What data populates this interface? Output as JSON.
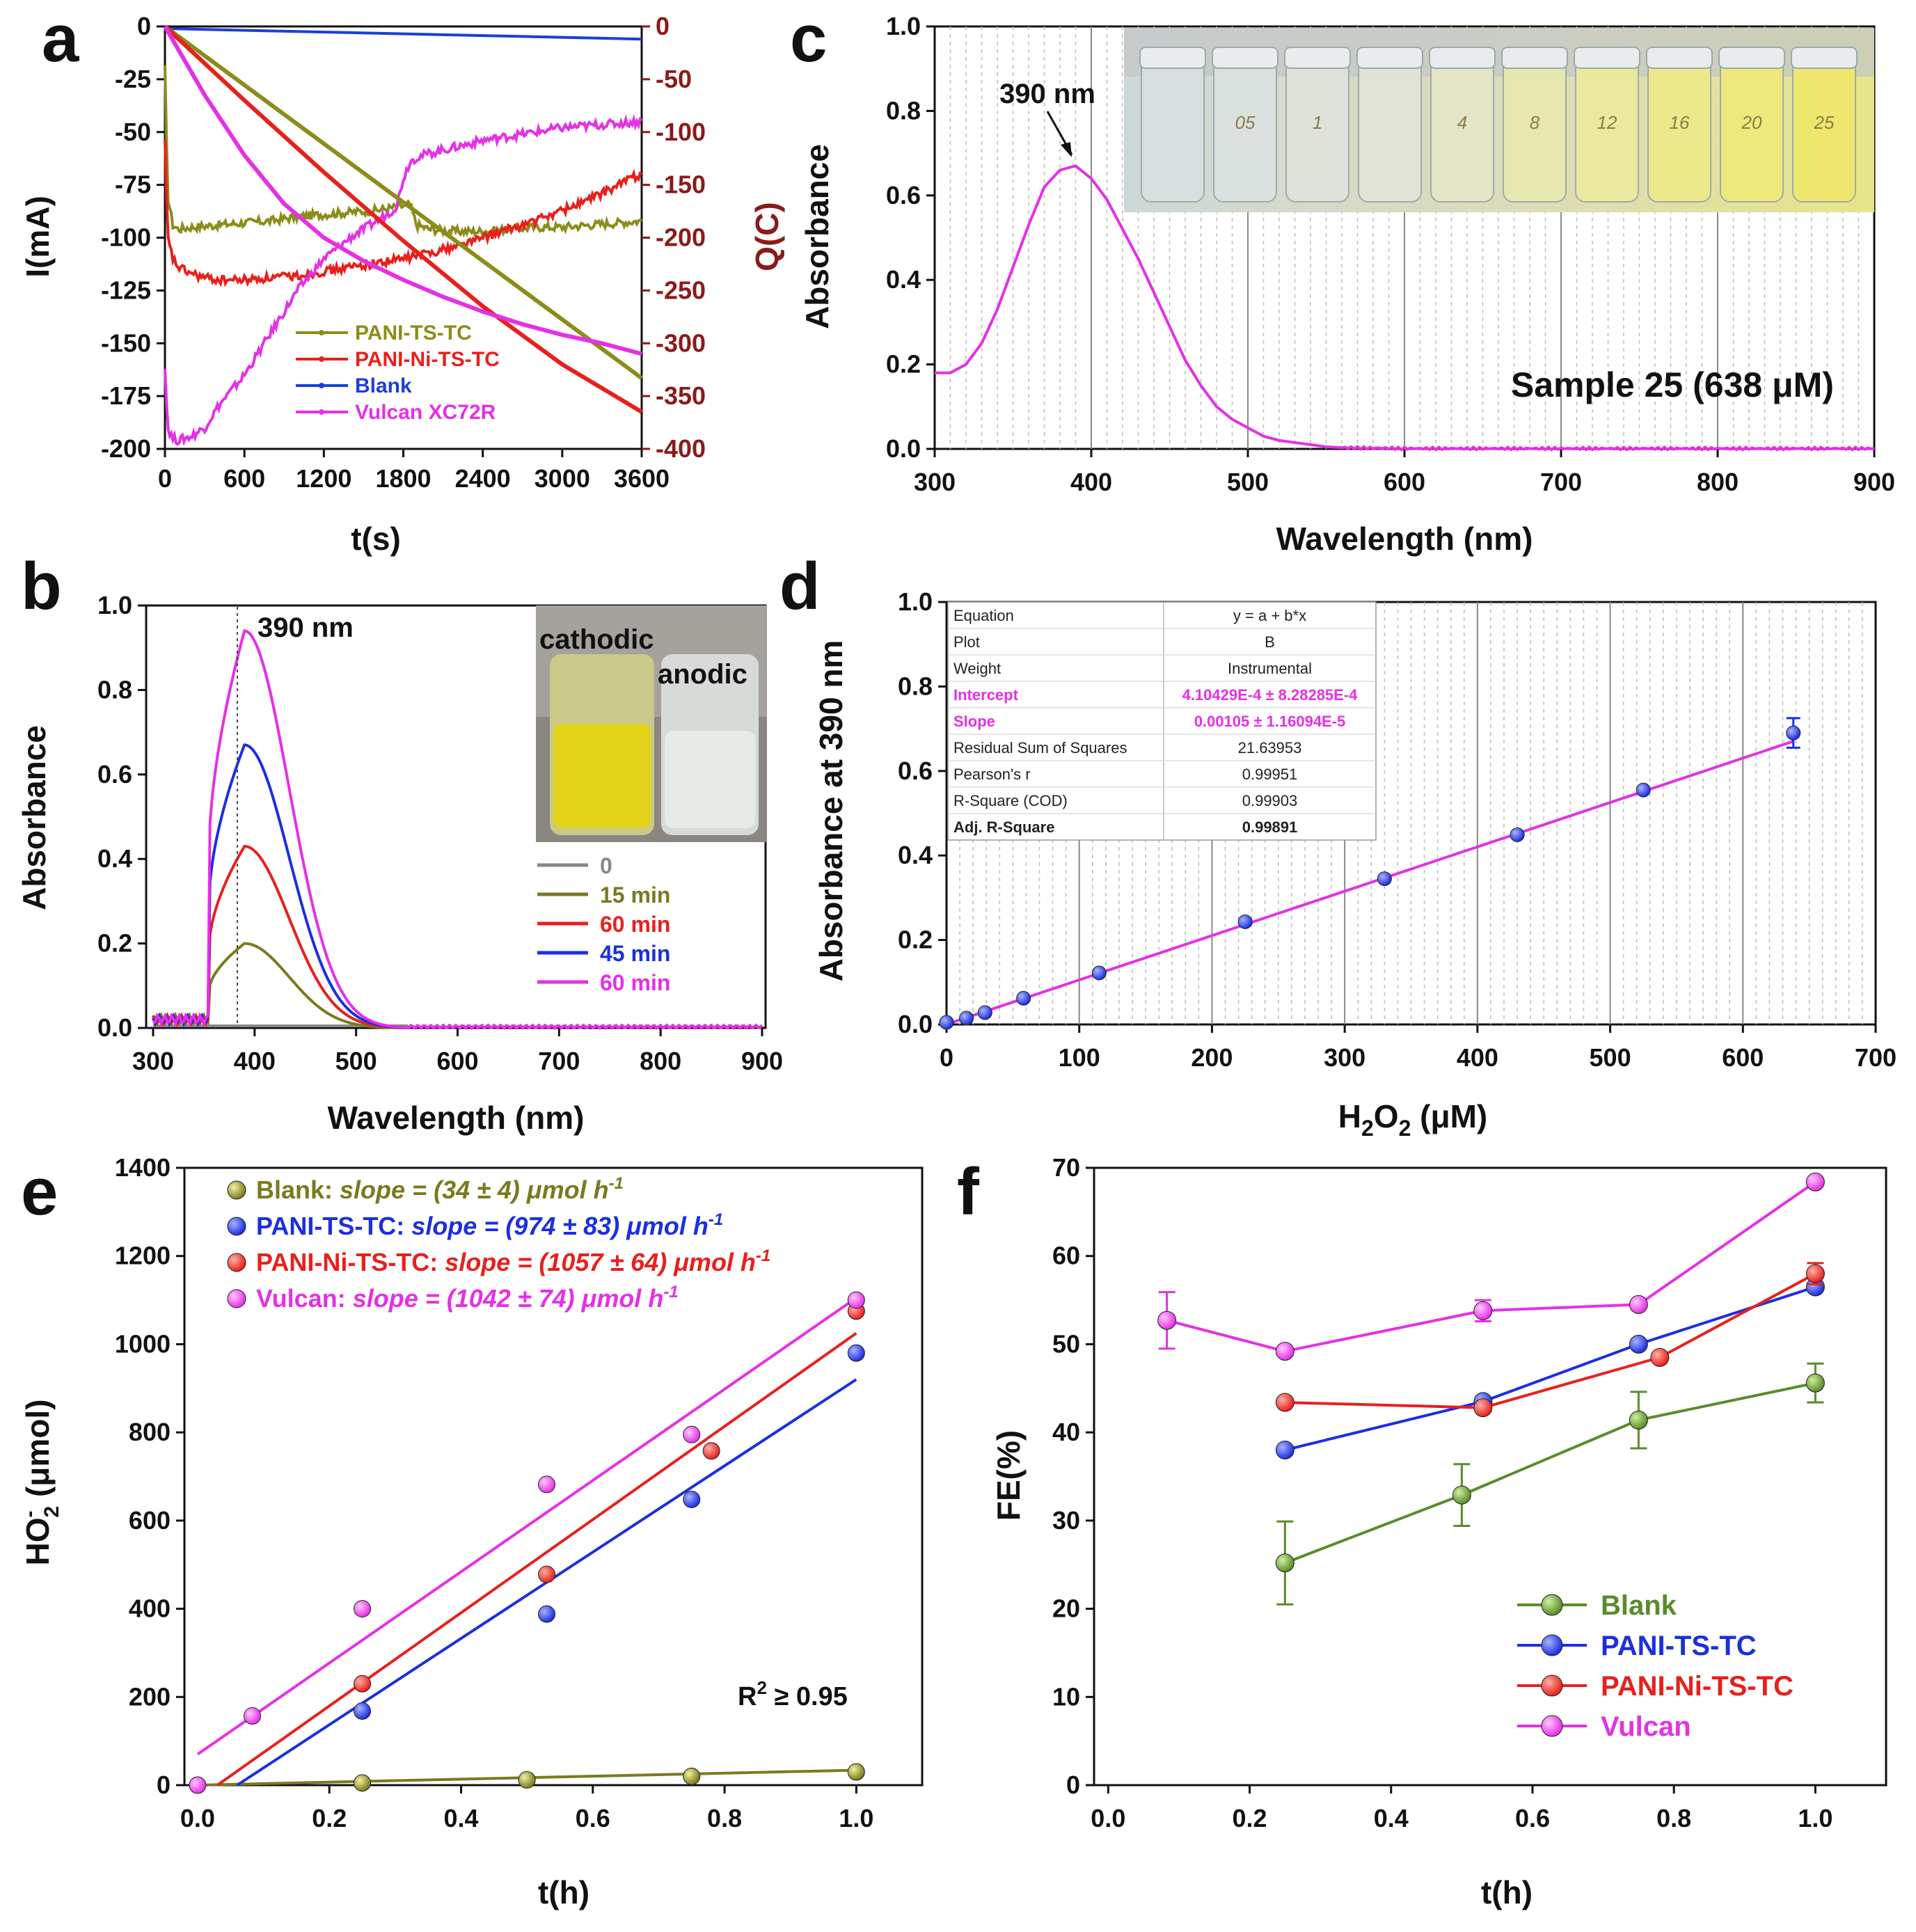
{
  "panels": {
    "a": {
      "label": "a",
      "xlabel": "t(s)",
      "ylabel_left": "I(mA)",
      "ylabel_right": "Q(C)",
      "xticks": [
        "0",
        "600",
        "1200",
        "1800",
        "2400",
        "3000",
        "3600"
      ],
      "yticks_left": [
        "0",
        "-25",
        "-50",
        "-75",
        "-100",
        "-125",
        "-150",
        "-175",
        "-200"
      ],
      "yticks_right": [
        "0",
        "-50",
        "-100",
        "-150",
        "-200",
        "-250",
        "-300",
        "-350",
        "-400"
      ],
      "legend": [
        "PANI-TS-TC",
        "PANI-Ni-TS-TC",
        "Blank",
        "Vulcan XC72R"
      ]
    },
    "b": {
      "label": "b",
      "xlabel": "Wavelength (nm)",
      "ylabel": "Absorbance",
      "xticks": [
        "300",
        "400",
        "500",
        "600",
        "700",
        "800",
        "900"
      ],
      "yticks": [
        "0.0",
        "0.2",
        "0.4",
        "0.6",
        "0.8",
        "1.0"
      ],
      "annotation": "390 nm",
      "legend": [
        "0",
        "15 min",
        "60 min",
        "45 min",
        "60 min"
      ],
      "photo_labels": [
        "cathodic",
        "anodic"
      ]
    },
    "c": {
      "label": "c",
      "xlabel": "Wavelength (nm)",
      "ylabel": "Absorbance",
      "xticks": [
        "300",
        "400",
        "500",
        "600",
        "700",
        "800",
        "900"
      ],
      "yticks": [
        "0.0",
        "0.2",
        "0.4",
        "0.6",
        "0.8",
        "1.0"
      ],
      "annotation": "390 nm",
      "sample_text": "Sample 25 (638 μM)",
      "vial_labels": [
        "",
        "05",
        "1",
        "",
        "4",
        "8",
        "12",
        "16",
        "20",
        "25"
      ]
    },
    "d": {
      "label": "d",
      "xlabel_main": "H",
      "xlabel_sub1": "2",
      "xlabel_mid": "O",
      "xlabel_sub2": "2",
      "xlabel_tail": " (μM)",
      "ylabel": "Absorbance at 390 nm",
      "xticks": [
        "0",
        "100",
        "200",
        "300",
        "400",
        "500",
        "600",
        "700"
      ],
      "yticks": [
        "0.0",
        "0.2",
        "0.4",
        "0.6",
        "0.8",
        "1.0"
      ],
      "fit_table": [
        [
          "Equation",
          "y = a + b*x"
        ],
        [
          "Plot",
          "B"
        ],
        [
          "Weight",
          "Instrumental"
        ],
        [
          "Intercept",
          "4.10429E-4 ± 8.28285E-4"
        ],
        [
          "Slope",
          "0.00105 ± 1.16094E-5"
        ],
        [
          "Residual Sum of Squares",
          "21.63953"
        ],
        [
          "Pearson's r",
          "0.99951"
        ],
        [
          "R-Square (COD)",
          "0.99903"
        ],
        [
          "Adj. R-Square",
          "0.99891"
        ]
      ]
    },
    "e": {
      "label": "e",
      "xlabel": "t(h)",
      "ylabel_main": "HO",
      "ylabel_sup": "-",
      "ylabel_sub": "2",
      "ylabel_tail": " (μmol)",
      "xticks": [
        "0.0",
        "0.2",
        "0.4",
        "0.6",
        "0.8",
        "1.0"
      ],
      "yticks": [
        "0",
        "200",
        "400",
        "600",
        "800",
        "1000",
        "1200",
        "1400"
      ],
      "r2_text": "R",
      "r2_sup": "2",
      "r2_tail": " ≥ 0.95",
      "legend": [
        {
          "name": "Blank:",
          "slope": "slope = (34 ± 4) μmol h",
          "sup": "-1"
        },
        {
          "name": "PANI-TS-TC:",
          "slope": "slope = (974 ± 83) μmol h",
          "sup": "-1"
        },
        {
          "name": "PANI-Ni-TS-TC:",
          "slope": "slope = (1057 ± 64) μmol h",
          "sup": "-1"
        },
        {
          "name": "Vulcan:",
          "slope": "slope = (1042 ± 74) μmol h",
          "sup": "-1"
        }
      ]
    },
    "f": {
      "label": "f",
      "xlabel": "t(h)",
      "ylabel": "FE(%)",
      "xticks": [
        "0.0",
        "0.2",
        "0.4",
        "0.6",
        "0.8",
        "1.0"
      ],
      "yticks": [
        "0",
        "10",
        "20",
        "30",
        "40",
        "50",
        "60",
        "70"
      ],
      "legend": [
        "Blank",
        "PANI-TS-TC",
        "PANI-Ni-TS-TC",
        "Vulcan"
      ]
    }
  },
  "colors": {
    "pani_ts_tc_a": "#8c8c1a",
    "pani_ni": "#e8201c",
    "blank_a": "#1b3fd6",
    "vulcan": "#e530e5",
    "olive": "#7a7a1e",
    "blue": "#1b2fe0",
    "green_f": "#5a8c2a",
    "gray": "#888888"
  },
  "chart_data": [
    {
      "panel": "a",
      "type": "line",
      "xlabel": "t(s)",
      "ylabel": "I(mA)",
      "y2label": "Q(C)",
      "xlim": [
        0,
        3600
      ],
      "ylim": [
        -200,
        0
      ],
      "y2lim": [
        -400,
        0
      ],
      "series": [
        {
          "name": "PANI-TS-TC current",
          "axis": "left",
          "x": [
            0,
            20,
            60,
            100,
            200,
            400,
            600,
            800,
            1000,
            1200,
            1400,
            1600,
            1800,
            1850,
            1900,
            2000,
            2200,
            2400,
            2600,
            2800,
            3000,
            3200,
            3400,
            3600
          ],
          "y": [
            -20,
            -80,
            -94,
            -96,
            -95,
            -94,
            -93,
            -92,
            -90,
            -89,
            -88,
            -87,
            -85,
            -84,
            -94,
            -96,
            -97,
            -97,
            -96,
            -95,
            -95,
            -94,
            -93,
            -92
          ]
        },
        {
          "name": "PANI-Ni-TS-TC current",
          "axis": "left",
          "x": [
            0,
            20,
            60,
            100,
            200,
            300,
            400,
            600,
            800,
            1000,
            1200,
            1400,
            1600,
            1800,
            2000,
            2200,
            2400,
            2600,
            2800,
            3000,
            3200,
            3400,
            3500,
            3600
          ],
          "y": [
            -55,
            -100,
            -110,
            -114,
            -117,
            -119,
            -120,
            -120,
            -119,
            -118,
            -116,
            -114,
            -112,
            -110,
            -107,
            -104,
            -100,
            -96,
            -92,
            -87,
            -82,
            -76,
            -72,
            -70
          ]
        },
        {
          "name": "Blank current",
          "axis": "left",
          "x": [
            0,
            3600
          ],
          "y": [
            -1,
            -6
          ]
        },
        {
          "name": "Vulcan XC72R current",
          "axis": "left",
          "x": [
            0,
            20,
            60,
            100,
            200,
            300,
            400,
            600,
            800,
            1000,
            1200,
            1400,
            1600,
            1700,
            1750,
            1800,
            1850,
            1900,
            2000,
            2200,
            2400,
            2600,
            2800,
            3000,
            3200,
            3400,
            3600
          ],
          "y": [
            -160,
            -190,
            -195,
            -196,
            -194,
            -190,
            -180,
            -165,
            -145,
            -125,
            -110,
            -100,
            -92,
            -88,
            -85,
            -72,
            -64,
            -62,
            -60,
            -57,
            -54,
            -52,
            -50,
            -48,
            -47,
            -46,
            -45
          ]
        },
        {
          "name": "PANI-TS-TC charge",
          "axis": "right",
          "x": [
            0,
            3600
          ],
          "y": [
            0,
            -333
          ]
        },
        {
          "name": "PANI-Ni-TS-TC charge",
          "axis": "right",
          "x": [
            0,
            600,
            1200,
            1800,
            2400,
            3000,
            3600
          ],
          "y": [
            0,
            -70,
            -138,
            -203,
            -265,
            -320,
            -365
          ]
        },
        {
          "name": "Vulcan XC72R charge",
          "axis": "right",
          "x": [
            0,
            300,
            600,
            900,
            1200,
            1500,
            1800,
            2100,
            2400,
            2700,
            3000,
            3300,
            3600
          ],
          "y": [
            0,
            -65,
            -122,
            -168,
            -200,
            -222,
            -240,
            -256,
            -270,
            -282,
            -292,
            -300,
            -310
          ]
        }
      ]
    },
    {
      "panel": "b",
      "type": "line",
      "xlabel": "Wavelength (nm)",
      "ylabel": "Absorbance",
      "xlim": [
        300,
        900
      ],
      "ylim": [
        0,
        1.0
      ],
      "series": [
        {
          "name": "0",
          "peak": 0.005
        },
        {
          "name": "15 min",
          "peak": 0.2
        },
        {
          "name": "60 min",
          "peak": 0.43
        },
        {
          "name": "45 min",
          "peak": 0.67
        },
        {
          "name": "60 min",
          "peak": 0.94
        }
      ],
      "peak_wavelength": 390
    },
    {
      "panel": "c",
      "type": "line",
      "xlabel": "Wavelength (nm)",
      "ylabel": "Absorbance",
      "xlim": [
        300,
        900
      ],
      "ylim": [
        0,
        1.0
      ],
      "x": [
        300,
        310,
        320,
        330,
        340,
        350,
        360,
        370,
        380,
        390,
        400,
        410,
        420,
        430,
        440,
        450,
        460,
        470,
        480,
        490,
        500,
        510,
        520,
        530,
        540,
        550,
        560,
        580,
        600,
        700,
        800,
        900
      ],
      "y": [
        0.18,
        0.18,
        0.2,
        0.25,
        0.33,
        0.43,
        0.53,
        0.62,
        0.66,
        0.67,
        0.64,
        0.59,
        0.52,
        0.45,
        0.37,
        0.29,
        0.21,
        0.15,
        0.1,
        0.07,
        0.05,
        0.03,
        0.02,
        0.015,
        0.01,
        0.005,
        0.003,
        0.002,
        0.001,
        0.001,
        0.001,
        0.001
      ]
    },
    {
      "panel": "d",
      "type": "scatter",
      "xlabel": "H2O2 (μM)",
      "ylabel": "Absorbance at 390 nm",
      "xlim": [
        0,
        700
      ],
      "ylim": [
        0,
        1.0
      ],
      "x": [
        0,
        15,
        29,
        58,
        115,
        225,
        330,
        430,
        525,
        638
      ],
      "y": [
        0.005,
        0.015,
        0.028,
        0.062,
        0.122,
        0.243,
        0.345,
        0.449,
        0.555,
        0.69
      ],
      "fit": {
        "intercept": 0.00041,
        "slope": 0.00105
      }
    },
    {
      "panel": "e",
      "type": "scatter",
      "xlabel": "t(h)",
      "ylabel": "HO2- (μmol)",
      "xlim": [
        -0.02,
        1.1
      ],
      "ylim": [
        0,
        1400
      ],
      "series": [
        {
          "name": "Blank",
          "x": [
            0,
            0.25,
            0.5,
            0.75,
            1.0
          ],
          "y": [
            0,
            5,
            12,
            20,
            30
          ]
        },
        {
          "name": "PANI-TS-TC",
          "x": [
            0,
            0.25,
            0.53,
            0.75,
            1.0
          ],
          "y": [
            0,
            168,
            388,
            648,
            980
          ]
        },
        {
          "name": "PANI-Ni-TS-TC",
          "x": [
            0,
            0.25,
            0.53,
            0.78,
            1.0
          ],
          "y": [
            0,
            230,
            478,
            758,
            1075
          ]
        },
        {
          "name": "Vulcan",
          "x": [
            0,
            0.083,
            0.25,
            0.53,
            0.75,
            1.0
          ],
          "y": [
            0,
            157,
            400,
            682,
            795,
            1100
          ]
        }
      ]
    },
    {
      "panel": "f",
      "type": "line",
      "xlabel": "t(h)",
      "ylabel": "FE(%)",
      "xlim": [
        -0.02,
        1.1
      ],
      "ylim": [
        0,
        70
      ],
      "series": [
        {
          "name": "Blank",
          "x": [
            0.25,
            0.5,
            0.75,
            1.0
          ],
          "y": [
            25.2,
            32.9,
            41.4,
            45.6
          ],
          "err": [
            4.7,
            3.5,
            3.2,
            2.2
          ]
        },
        {
          "name": "PANI-TS-TC",
          "x": [
            0.25,
            0.53,
            0.75,
            1.0
          ],
          "y": [
            38.0,
            43.5,
            50.0,
            56.5
          ],
          "err": [
            0,
            0,
            0,
            0
          ]
        },
        {
          "name": "PANI-Ni-TS-TC",
          "x": [
            0.25,
            0.53,
            0.78,
            1.0
          ],
          "y": [
            43.4,
            42.8,
            48.5,
            58.0
          ],
          "err": [
            0,
            0,
            0,
            1.2
          ]
        },
        {
          "name": "Vulcan",
          "x": [
            0.083,
            0.25,
            0.53,
            0.75,
            1.0
          ],
          "y": [
            52.7,
            49.2,
            53.8,
            54.5,
            68.4
          ],
          "err": [
            3.2,
            0,
            1.2,
            0,
            0
          ]
        }
      ]
    }
  ]
}
